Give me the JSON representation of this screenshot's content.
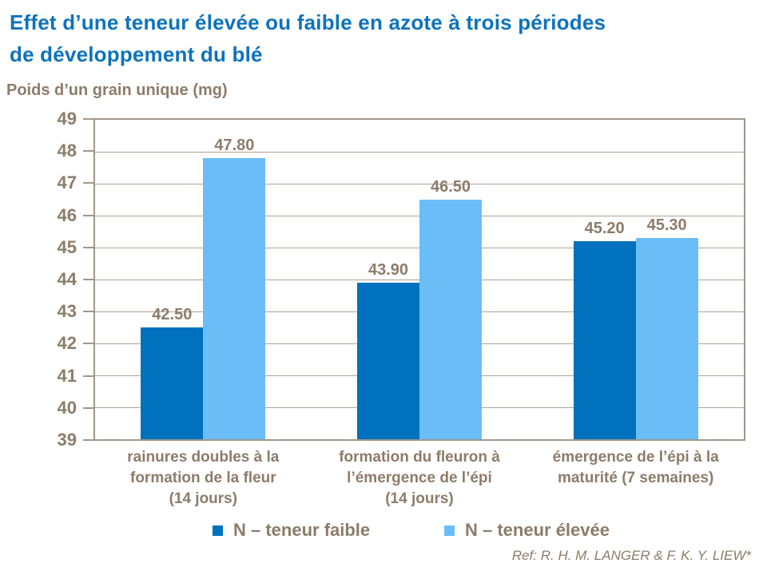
{
  "title": {
    "line1": "Effet d’une teneur élevée ou faible en azote à trois périodes",
    "line2": "de développement du blé"
  },
  "chart_data": {
    "type": "bar",
    "y_axis_title": "Poids d’un grain unique (mg)",
    "categories": [
      "rainures doubles à la\nformation de la fleur\n(14 jours)",
      "formation du fleuron à\nl’émergence de l’épi\n(14 jours)",
      "émergence de l’épi à la\nmaturité (7 semaines)"
    ],
    "series": [
      {
        "name": "N – teneur faible",
        "color": "#0071bc",
        "values": [
          42.5,
          43.9,
          45.2
        ]
      },
      {
        "name": "N – teneur élevée",
        "color": "#6bbdf7",
        "values": [
          47.8,
          46.5,
          45.3
        ]
      }
    ],
    "ylim": [
      39,
      49
    ],
    "ytick_step": 1,
    "grid": true,
    "legend_position": "bottom",
    "value_label_decimals": 2
  },
  "reference": "Ref: R. H. M. LANGER & F. K. Y. LIEW*",
  "colors": {
    "title_blue": "#0e73bc",
    "chart_text": "#8c7c6a",
    "gridline": "#aca294",
    "plot_border": "#a1968a",
    "series_low": "#0071bc",
    "series_high": "#6bbdf7"
  }
}
